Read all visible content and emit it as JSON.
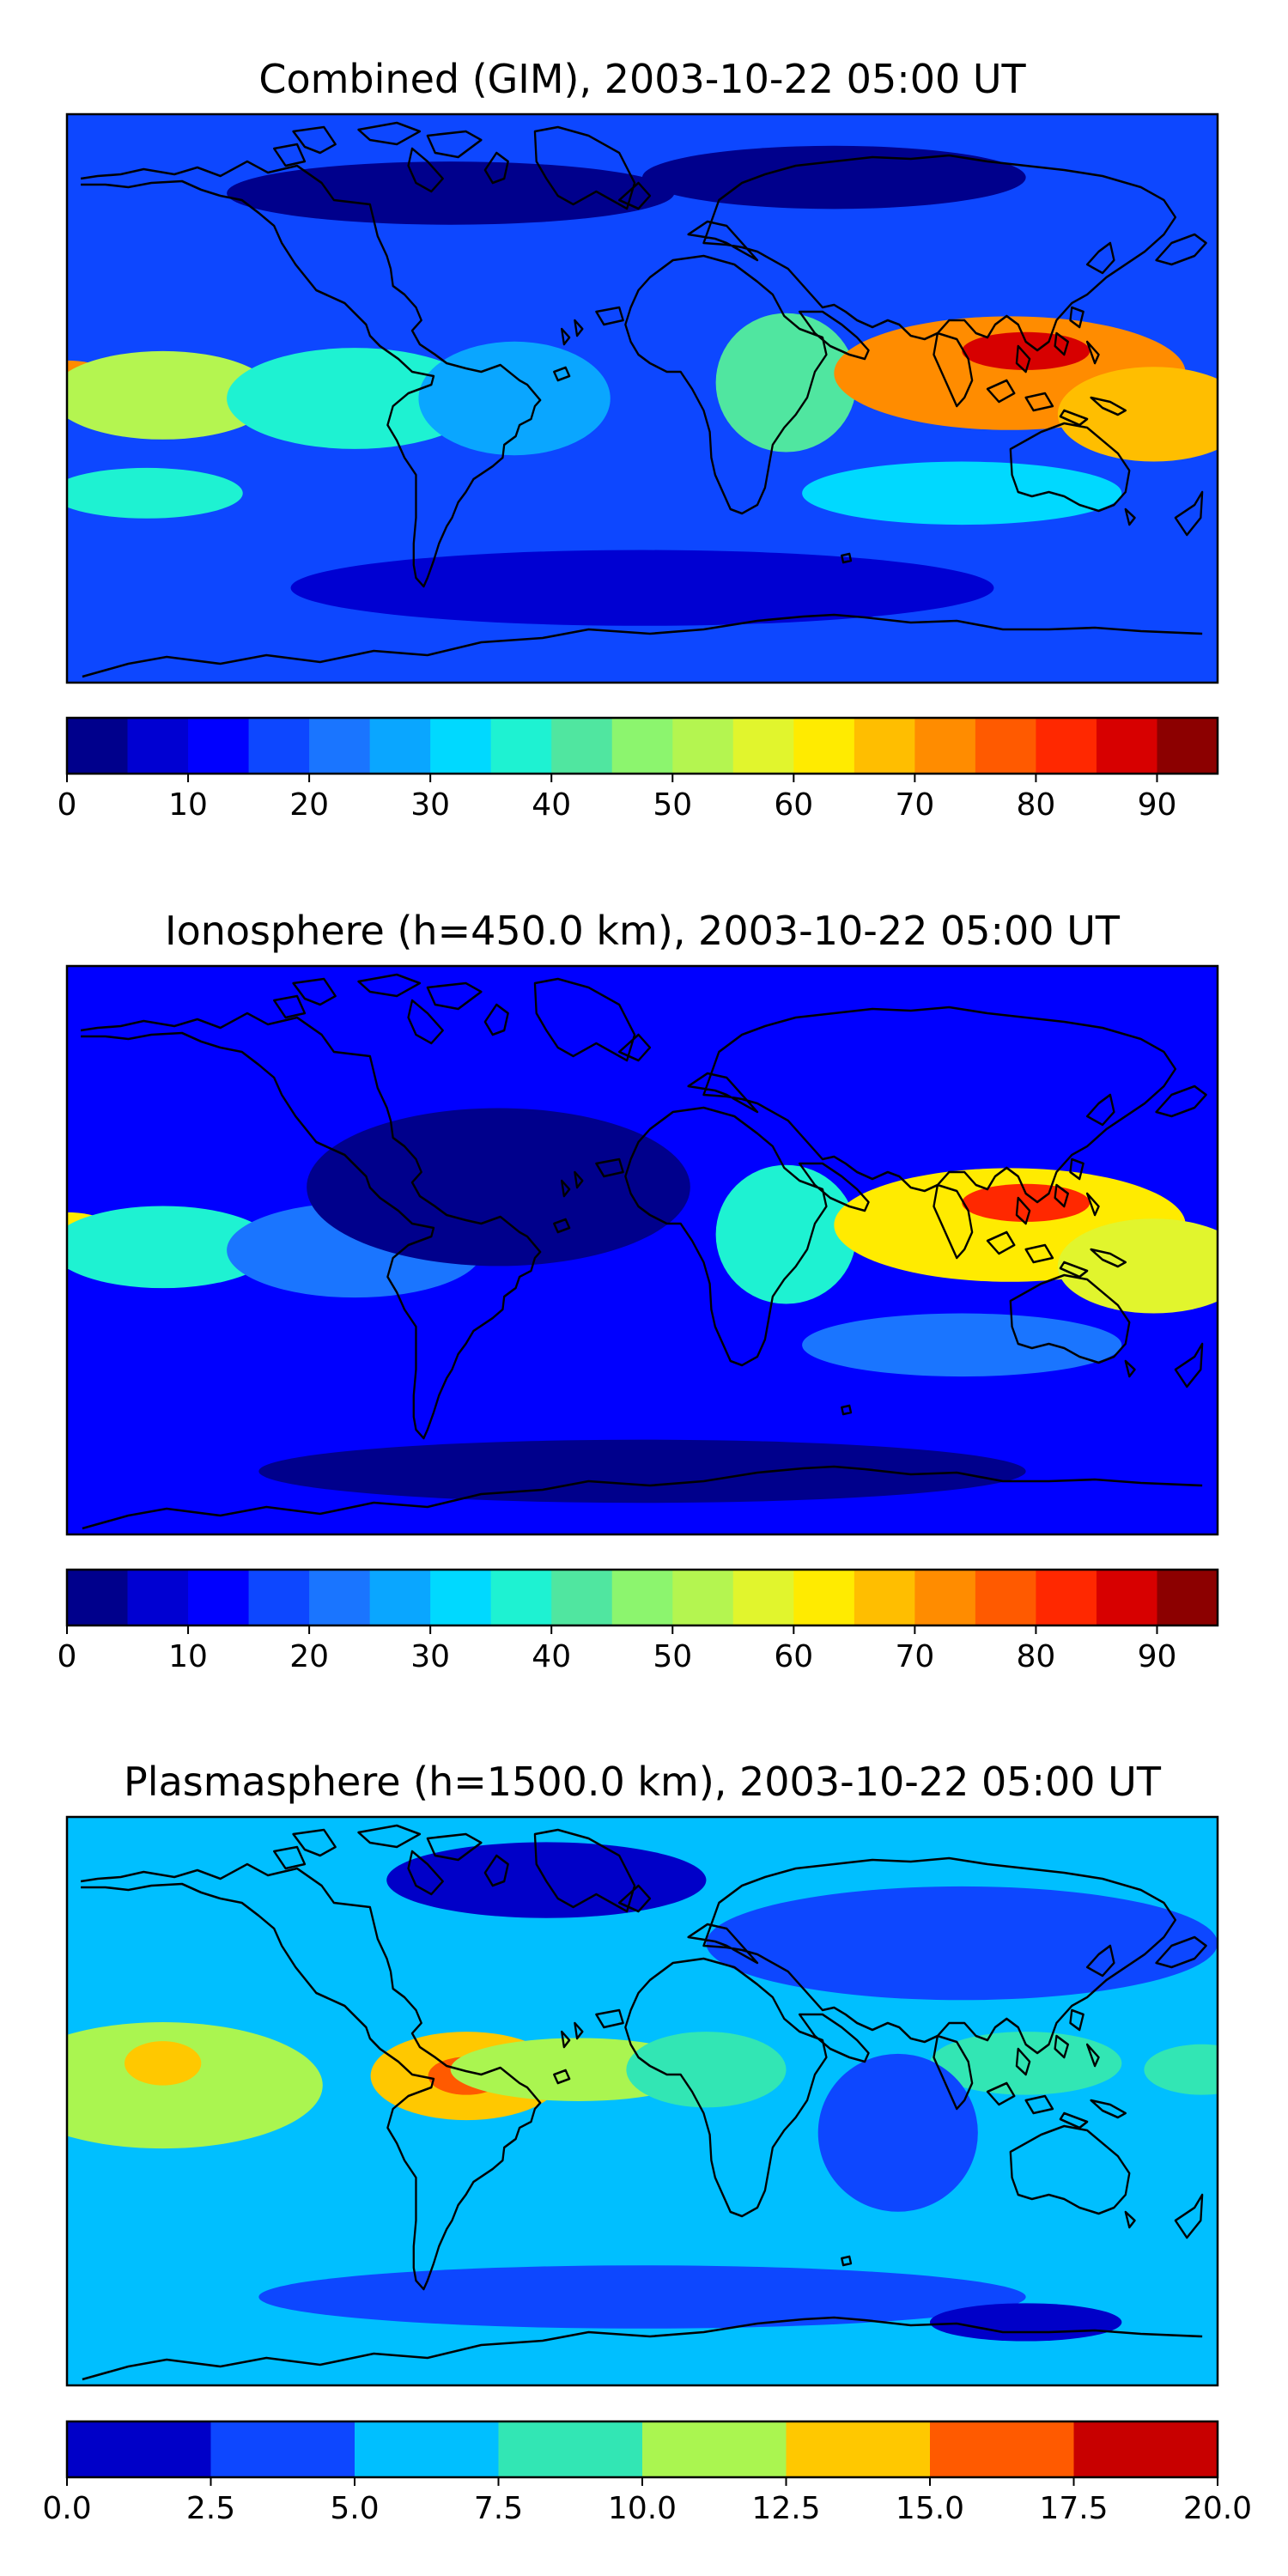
{
  "chart_data": [
    {
      "type": "heatmap",
      "title": "Combined (GIM), 2003-10-22 05:00 UT",
      "xlabel": "",
      "ylabel": "",
      "colorbar": {
        "levels": [
          0,
          5,
          10,
          15,
          20,
          25,
          30,
          35,
          40,
          45,
          50,
          55,
          60,
          65,
          70,
          75,
          80,
          85,
          90,
          95
        ],
        "colors": [
          "#00008c",
          "#0000d2",
          "#0000ff",
          "#0d47ff",
          "#1a75ff",
          "#0aa6ff",
          "#00d9ff",
          "#1ef2d2",
          "#50e6a0",
          "#8cf56e",
          "#b4f550",
          "#e1f52d",
          "#ffeb00",
          "#ffbe00",
          "#ff8c00",
          "#ff5a00",
          "#ff2800",
          "#d70000",
          "#8c0000"
        ],
        "tick_labels": [
          "0",
          "10",
          "20",
          "30",
          "40",
          "50",
          "60",
          "70",
          "80",
          "90"
        ],
        "tick_values": [
          0,
          10,
          20,
          30,
          40,
          50,
          60,
          70,
          80,
          90
        ]
      },
      "background_level": 15,
      "features": [
        {
          "lon": -180,
          "lat": 3,
          "value": 74,
          "rlon": 18,
          "rlat": 9
        },
        {
          "lon": -150,
          "lat": 1,
          "value": 52,
          "rlon": 35,
          "rlat": 14
        },
        {
          "lon": -90,
          "lat": 0,
          "value": 38,
          "rlon": 40,
          "rlat": 16
        },
        {
          "lon": -40,
          "lat": 0,
          "value": 28,
          "rlon": 30,
          "rlat": 18
        },
        {
          "lon": -155,
          "lat": -30,
          "value": 37,
          "rlon": 30,
          "rlat": 8
        },
        {
          "lon": 45,
          "lat": 5,
          "value": 40,
          "rlon": 22,
          "rlat": 22
        },
        {
          "lon": 115,
          "lat": 8,
          "value": 72,
          "rlon": 55,
          "rlat": 18
        },
        {
          "lon": 120,
          "lat": 15,
          "value": 85,
          "rlon": 20,
          "rlat": 6
        },
        {
          "lon": 160,
          "lat": -5,
          "value": 65,
          "rlon": 30,
          "rlat": 15
        },
        {
          "lon": 100,
          "lat": -30,
          "value": 30,
          "rlon": 50,
          "rlat": 10
        },
        {
          "lon": -60,
          "lat": 65,
          "value": 2,
          "rlon": 70,
          "rlat": 10
        },
        {
          "lon": 60,
          "lat": 70,
          "value": 4,
          "rlon": 60,
          "rlat": 10
        },
        {
          "lon": 0,
          "lat": -60,
          "value": 8,
          "rlon": 110,
          "rlat": 12
        }
      ]
    },
    {
      "type": "heatmap",
      "title": "Ionosphere  (h=450.0 km), 2003-10-22 05:00 UT",
      "xlabel": "",
      "ylabel": "",
      "colorbar": {
        "levels": [
          0,
          5,
          10,
          15,
          20,
          25,
          30,
          35,
          40,
          45,
          50,
          55,
          60,
          65,
          70,
          75,
          80,
          85,
          90,
          95
        ],
        "colors": [
          "#00008c",
          "#0000d2",
          "#0000ff",
          "#0d47ff",
          "#1a75ff",
          "#0aa6ff",
          "#00d9ff",
          "#1ef2d2",
          "#50e6a0",
          "#8cf56e",
          "#b4f550",
          "#e1f52d",
          "#ffeb00",
          "#ffbe00",
          "#ff8c00",
          "#ff5a00",
          "#ff2800",
          "#d70000",
          "#8c0000"
        ],
        "tick_labels": [
          "0",
          "10",
          "20",
          "30",
          "40",
          "50",
          "60",
          "70",
          "80",
          "90"
        ],
        "tick_values": [
          0,
          10,
          20,
          30,
          40,
          50,
          60,
          70,
          80,
          90
        ]
      },
      "background_level": 10,
      "features": [
        {
          "lon": -180,
          "lat": 3,
          "value": 62,
          "rlon": 18,
          "rlat": 9
        },
        {
          "lon": -150,
          "lat": 1,
          "value": 38,
          "rlon": 35,
          "rlat": 13
        },
        {
          "lon": -90,
          "lat": 0,
          "value": 24,
          "rlon": 40,
          "rlat": 15
        },
        {
          "lon": -45,
          "lat": 20,
          "value": 4,
          "rlon": 60,
          "rlat": 25
        },
        {
          "lon": 45,
          "lat": 5,
          "value": 35,
          "rlon": 22,
          "rlat": 22
        },
        {
          "lon": 115,
          "lat": 8,
          "value": 64,
          "rlon": 55,
          "rlat": 18
        },
        {
          "lon": 120,
          "lat": 15,
          "value": 80,
          "rlon": 20,
          "rlat": 6
        },
        {
          "lon": 160,
          "lat": -5,
          "value": 58,
          "rlon": 30,
          "rlat": 15
        },
        {
          "lon": 100,
          "lat": -30,
          "value": 24,
          "rlon": 50,
          "rlat": 10
        },
        {
          "lon": 0,
          "lat": -70,
          "value": 2,
          "rlon": 120,
          "rlat": 10
        }
      ]
    },
    {
      "type": "heatmap",
      "title": "Plasmasphere (h=1500.0 km), 2003-10-22 05:00 UT",
      "xlabel": "",
      "ylabel": "",
      "colorbar": {
        "levels": [
          0,
          2.5,
          5,
          7.5,
          10,
          12.5,
          15,
          17.5,
          20
        ],
        "colors": [
          "#0000c8",
          "#0d47ff",
          "#00bfff",
          "#32e6b4",
          "#aaf550",
          "#ffc800",
          "#ff5a00",
          "#c80000"
        ],
        "tick_labels": [
          "0.0",
          "2.5",
          "5.0",
          "7.5",
          "10.0",
          "12.5",
          "15.0",
          "17.5",
          "20.0"
        ],
        "tick_values": [
          0,
          2.5,
          5,
          7.5,
          10,
          12.5,
          15,
          17.5,
          20
        ]
      },
      "background_level": 6,
      "features": [
        {
          "lon": -150,
          "lat": 5,
          "value": 11,
          "rlon": 50,
          "rlat": 20
        },
        {
          "lon": -150,
          "lat": 12,
          "value": 14,
          "rlon": 12,
          "rlat": 7
        },
        {
          "lon": -55,
          "lat": 8,
          "value": 13,
          "rlon": 30,
          "rlat": 14
        },
        {
          "lon": -55,
          "lat": 8,
          "value": 16,
          "rlon": 12,
          "rlat": 6
        },
        {
          "lon": -20,
          "lat": 10,
          "value": 10,
          "rlon": 40,
          "rlat": 10
        },
        {
          "lon": 20,
          "lat": 10,
          "value": 8,
          "rlon": 25,
          "rlat": 12
        },
        {
          "lon": 120,
          "lat": 12,
          "value": 9,
          "rlon": 30,
          "rlat": 10
        },
        {
          "lon": 175,
          "lat": 10,
          "value": 9,
          "rlon": 18,
          "rlat": 8
        },
        {
          "lon": -30,
          "lat": 70,
          "value": 1,
          "rlon": 50,
          "rlat": 12
        },
        {
          "lon": 100,
          "lat": 50,
          "value": 2.5,
          "rlon": 80,
          "rlat": 18
        },
        {
          "lon": 80,
          "lat": -10,
          "value": 3,
          "rlon": 25,
          "rlat": 25
        },
        {
          "lon": 0,
          "lat": -62,
          "value": 3.5,
          "rlon": 120,
          "rlat": 10
        },
        {
          "lon": 120,
          "lat": -70,
          "value": 1.5,
          "rlon": 30,
          "rlat": 6
        }
      ]
    }
  ]
}
